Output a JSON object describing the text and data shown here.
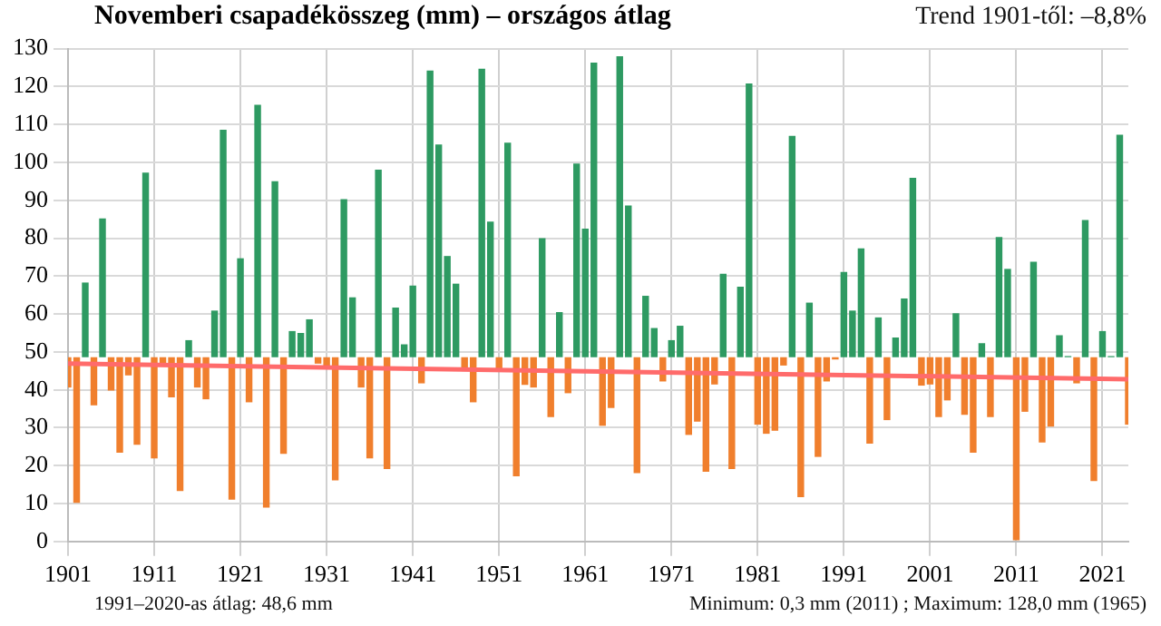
{
  "chart_data": {
    "type": "bar",
    "title": "Novemberi csapadékösszeg (mm) – országos átlag",
    "annotations": [
      "Trend 1901-től: –8,8%",
      "1991–2020-as átlag: 48,6 mm",
      "Minimum:  0,3 mm (2011) ; Maximum:  128,0 mm (1965)"
    ],
    "x": [
      1901,
      1902,
      1903,
      1904,
      1905,
      1906,
      1907,
      1908,
      1909,
      1910,
      1911,
      1912,
      1913,
      1914,
      1915,
      1916,
      1917,
      1918,
      1919,
      1920,
      1921,
      1922,
      1923,
      1924,
      1925,
      1926,
      1927,
      1928,
      1929,
      1930,
      1931,
      1932,
      1933,
      1934,
      1935,
      1936,
      1937,
      1938,
      1939,
      1940,
      1941,
      1942,
      1943,
      1944,
      1945,
      1946,
      1947,
      1948,
      1949,
      1950,
      1951,
      1952,
      1953,
      1954,
      1955,
      1956,
      1957,
      1958,
      1959,
      1960,
      1961,
      1962,
      1963,
      1964,
      1965,
      1966,
      1967,
      1968,
      1969,
      1970,
      1971,
      1972,
      1973,
      1974,
      1975,
      1976,
      1977,
      1978,
      1979,
      1980,
      1981,
      1982,
      1983,
      1984,
      1985,
      1986,
      1987,
      1988,
      1989,
      1990,
      1991,
      1992,
      1993,
      1994,
      1995,
      1996,
      1997,
      1998,
      1999,
      2000,
      2001,
      2002,
      2003,
      2004,
      2005,
      2006,
      2007,
      2008,
      2009,
      2010,
      2011,
      2012,
      2013,
      2014,
      2015,
      2016,
      2017,
      2018,
      2019,
      2020,
      2021,
      2022,
      2023,
      2024
    ],
    "base": [
      48.6,
      48.6,
      48.6,
      48.6,
      48.6,
      48.6,
      48.6,
      48.6,
      48.6,
      48.6,
      48.6,
      48.6,
      48.6,
      48.6,
      48.6,
      48.6,
      48.6,
      48.6,
      48.6,
      48.6,
      48.6,
      48.6,
      48.6,
      48.6,
      48.6,
      48.6,
      48.6,
      48.6,
      48.6,
      48.6,
      48.6,
      48.6,
      48.6,
      48.6,
      48.6,
      48.6,
      48.6,
      48.6,
      48.6,
      48.6,
      48.6,
      48.6,
      48.6,
      48.6,
      48.6,
      48.6,
      48.6,
      48.6,
      48.6,
      48.6,
      48.6,
      48.6,
      48.6,
      48.6,
      48.6,
      48.6,
      48.6,
      48.6,
      48.6,
      48.6,
      48.6,
      48.6,
      48.6,
      48.6,
      48.6,
      48.6,
      48.6,
      48.6,
      48.6,
      48.6,
      48.6,
      48.6,
      48.6,
      48.6,
      48.6,
      48.6,
      48.6,
      48.6,
      48.6,
      48.6,
      48.6,
      48.6,
      48.6,
      48.6,
      48.6,
      48.6,
      48.6,
      48.6,
      48.6,
      48.6,
      48.6,
      48.6,
      48.6,
      48.6,
      48.6,
      48.6,
      48.6,
      48.6,
      48.6,
      48.6,
      48.6,
      48.6,
      48.6,
      48.6,
      48.6,
      48.6,
      48.6,
      48.6,
      48.6,
      48.6,
      48.6,
      48.6,
      48.6,
      48.6,
      48.6,
      48.6,
      48.6,
      48.6,
      48.6,
      48.6,
      48.6,
      48.6,
      48.6,
      48.6
    ],
    "values": [
      -8.0,
      -38.4,
      19.7,
      -12.7,
      36.6,
      -8.8,
      -25.2,
      -4.8,
      -23.1,
      48.7,
      -26.7,
      -1.6,
      -10.6,
      -35.3,
      4.5,
      -8.0,
      -11.1,
      12.3,
      60.0,
      -37.6,
      26.1,
      -11.9,
      66.6,
      -39.7,
      46.4,
      -25.5,
      6.9,
      6.4,
      10.0,
      -1.7,
      -2.8,
      -32.5,
      41.7,
      15.8,
      -8.0,
      -26.7,
      49.5,
      -29.5,
      13.1,
      3.4,
      18.9,
      -6.9,
      75.6,
      56.1,
      26.7,
      19.4,
      -3.6,
      -11.9,
      76.1,
      35.8,
      -3.0,
      56.6,
      -31.4,
      -7.3,
      -8.0,
      31.4,
      -15.8,
      11.9,
      -9.5,
      51.1,
      33.9,
      77.7,
      -18.1,
      -13.4,
      79.4,
      40.0,
      -30.6,
      16.2,
      7.7,
      -6.4,
      4.5,
      8.3,
      -20.5,
      -17.0,
      -30.2,
      -7.2,
      22.0,
      -29.5,
      18.6,
      72.2,
      -17.8,
      -20.2,
      -19.4,
      -2.2,
      58.4,
      -36.9,
      14.4,
      -26.3,
      -6.4,
      -0.6,
      22.5,
      12.3,
      28.7,
      -22.8,
      10.5,
      -16.6,
      5.2,
      15.5,
      47.3,
      -7.5,
      -7.2,
      -15.8,
      -11.4,
      11.6,
      -15.2,
      -25.2,
      3.7,
      -15.8,
      31.7,
      23.3,
      -48.3,
      -14.4,
      25.2,
      -22.5,
      -18.3,
      5.8,
      0.3,
      -6.9,
      36.2,
      -32.7,
      6.9,
      0.3,
      58.7,
      -17.8
    ],
    "colors": [
      "#f07f2d",
      "#f07f2d",
      "#2e9a62",
      "#f07f2d",
      "#2e9a62",
      "#f07f2d",
      "#f07f2d",
      "#f07f2d",
      "#f07f2d",
      "#2e9a62",
      "#f07f2d",
      "#f07f2d",
      "#f07f2d",
      "#f07f2d",
      "#2e9a62",
      "#f07f2d",
      "#f07f2d",
      "#2e9a62",
      "#2e9a62",
      "#f07f2d",
      "#2e9a62",
      "#f07f2d",
      "#2e9a62",
      "#f07f2d",
      "#2e9a62",
      "#f07f2d",
      "#2e9a62",
      "#2e9a62",
      "#2e9a62",
      "#f07f2d",
      "#f07f2d",
      "#f07f2d",
      "#2e9a62",
      "#2e9a62",
      "#f07f2d",
      "#f07f2d",
      "#2e9a62",
      "#f07f2d",
      "#2e9a62",
      "#2e9a62",
      "#2e9a62",
      "#f07f2d",
      "#2e9a62",
      "#2e9a62",
      "#2e9a62",
      "#2e9a62",
      "#f07f2d",
      "#f07f2d",
      "#2e9a62",
      "#2e9a62",
      "#f07f2d",
      "#2e9a62",
      "#f07f2d",
      "#f07f2d",
      "#f07f2d",
      "#2e9a62",
      "#f07f2d",
      "#2e9a62",
      "#f07f2d",
      "#2e9a62",
      "#2e9a62",
      "#2e9a62",
      "#f07f2d",
      "#f07f2d",
      "#2e9a62",
      "#2e9a62",
      "#f07f2d",
      "#2e9a62",
      "#2e9a62",
      "#f07f2d",
      "#2e9a62",
      "#2e9a62",
      "#f07f2d",
      "#f07f2d",
      "#f07f2d",
      "#f07f2d",
      "#2e9a62",
      "#f07f2d",
      "#2e9a62",
      "#2e9a62",
      "#f07f2d",
      "#f07f2d",
      "#f07f2d",
      "#f07f2d",
      "#2e9a62",
      "#f07f2d",
      "#2e9a62",
      "#f07f2d",
      "#f07f2d",
      "#f07f2d",
      "#2e9a62",
      "#2e9a62",
      "#2e9a62",
      "#f07f2d",
      "#2e9a62",
      "#f07f2d",
      "#2e9a62",
      "#2e9a62",
      "#2e9a62",
      "#f07f2d",
      "#f07f2d",
      "#f07f2d",
      "#f07f2d",
      "#2e9a62",
      "#f07f2d",
      "#f07f2d",
      "#2e9a62",
      "#f07f2d",
      "#2e9a62",
      "#2e9a62",
      "#f07f2d",
      "#f07f2d",
      "#2e9a62",
      "#f07f2d",
      "#f07f2d",
      "#2e9a62",
      "#2e9a62",
      "#f07f2d",
      "#2e9a62",
      "#f07f2d",
      "#2e9a62",
      "#2e9a62",
      "#2e9a62",
      "#f07f2d"
    ],
    "series": [
      {
        "type": "line",
        "x": [
          1901,
          2024
        ],
        "values": [
          46.9,
          42.8
        ],
        "color": "#ff6b6b",
        "marker": "none"
      }
    ],
    "xlim": [
      1901,
      2024
    ],
    "xticks": [
      1901,
      1911,
      1921,
      1931,
      1941,
      1951,
      1961,
      1971,
      1981,
      1991,
      2001,
      2011,
      2021
    ],
    "ylim": [
      0,
      130
    ],
    "yticks": [
      0,
      10,
      20,
      30,
      40,
      50,
      60,
      70,
      80,
      90,
      100,
      110,
      120,
      130
    ],
    "grid": true,
    "legend": false
  }
}
